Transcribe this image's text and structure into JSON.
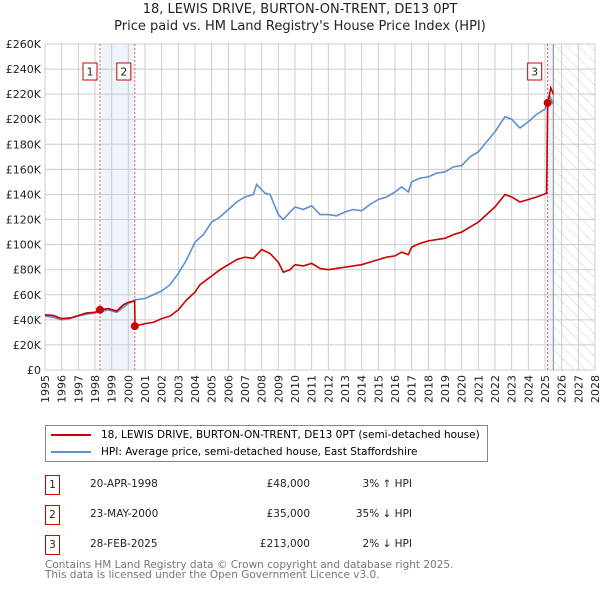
{
  "chart_data": {
    "type": "line",
    "title": "18, LEWIS DRIVE, BURTON-ON-TRENT, DE13 0PT",
    "subtitle": "Price paid vs. HM Land Registry's House Price Index (HPI)",
    "xlim": [
      1995,
      2028
    ],
    "ylim": [
      0,
      260000
    ],
    "x_ticks": [
      "1995",
      "1996",
      "1997",
      "1998",
      "1999",
      "2000",
      "2001",
      "2002",
      "2003",
      "2004",
      "2005",
      "2006",
      "2007",
      "2008",
      "2009",
      "2010",
      "2011",
      "2012",
      "2013",
      "2014",
      "2015",
      "2016",
      "2017",
      "2018",
      "2019",
      "2020",
      "2021",
      "2022",
      "2023",
      "2024",
      "2025",
      "2026",
      "2027",
      "2028"
    ],
    "y_ticks": [
      {
        "v": 0,
        "l": "£0"
      },
      {
        "v": 20000,
        "l": "£20K"
      },
      {
        "v": 40000,
        "l": "£40K"
      },
      {
        "v": 60000,
        "l": "£60K"
      },
      {
        "v": 80000,
        "l": "£80K"
      },
      {
        "v": 100000,
        "l": "£100K"
      },
      {
        "v": 120000,
        "l": "£120K"
      },
      {
        "v": 140000,
        "l": "£140K"
      },
      {
        "v": 160000,
        "l": "£160K"
      },
      {
        "v": 180000,
        "l": "£180K"
      },
      {
        "v": 200000,
        "l": "£200K"
      },
      {
        "v": 220000,
        "l": "£220K"
      },
      {
        "v": 240000,
        "l": "£240K"
      },
      {
        "v": 260000,
        "l": "£260K"
      }
    ],
    "grid": true,
    "shaded_band": [
      1998.3,
      2000.39
    ],
    "forecast_start": 2025.5,
    "series": [
      {
        "name": "18, LEWIS DRIVE, BURTON-ON-TRENT, DE13 0PT (semi-detached house)",
        "color": "#cc0000",
        "points": [
          [
            1995,
            44000
          ],
          [
            1995.5,
            43500
          ],
          [
            1996,
            41000
          ],
          [
            1996.5,
            41500
          ],
          [
            1997,
            43500
          ],
          [
            1997.5,
            45500
          ],
          [
            1998,
            46000
          ],
          [
            1998.3,
            48000
          ],
          [
            1998.8,
            49000
          ],
          [
            1999.3,
            47000
          ],
          [
            1999.7,
            52000
          ],
          [
            2000,
            54000
          ],
          [
            2000.38,
            55000
          ],
          [
            2000.4,
            35000
          ],
          [
            2001,
            37000
          ],
          [
            2001.5,
            38000
          ],
          [
            2002,
            41000
          ],
          [
            2002.5,
            43000
          ],
          [
            2003,
            48000
          ],
          [
            2003.5,
            56000
          ],
          [
            2004,
            62000
          ],
          [
            2004.3,
            68000
          ],
          [
            2005,
            75000
          ],
          [
            2005.5,
            80000
          ],
          [
            2006,
            84000
          ],
          [
            2006.5,
            88000
          ],
          [
            2007,
            90000
          ],
          [
            2007.5,
            89000
          ],
          [
            2008,
            96000
          ],
          [
            2008.5,
            93000
          ],
          [
            2009,
            86000
          ],
          [
            2009.3,
            78000
          ],
          [
            2009.7,
            80000
          ],
          [
            2010,
            84000
          ],
          [
            2010.5,
            83000
          ],
          [
            2011,
            85000
          ],
          [
            2011.5,
            81000
          ],
          [
            2012,
            80000
          ],
          [
            2012.5,
            81000
          ],
          [
            2013,
            82000
          ],
          [
            2013.5,
            83000
          ],
          [
            2014,
            84000
          ],
          [
            2014.5,
            86000
          ],
          [
            2015,
            88000
          ],
          [
            2015.5,
            90000
          ],
          [
            2016,
            91000
          ],
          [
            2016.4,
            94000
          ],
          [
            2016.8,
            92000
          ],
          [
            2017,
            98000
          ],
          [
            2017.5,
            101000
          ],
          [
            2018,
            103000
          ],
          [
            2018.5,
            104000
          ],
          [
            2019,
            105000
          ],
          [
            2019.5,
            108000
          ],
          [
            2020,
            110000
          ],
          [
            2020.5,
            114000
          ],
          [
            2021,
            118000
          ],
          [
            2021.5,
            124000
          ],
          [
            2022,
            130000
          ],
          [
            2022.6,
            140000
          ],
          [
            2023,
            138000
          ],
          [
            2023.5,
            134000
          ],
          [
            2024,
            136000
          ],
          [
            2024.5,
            138000
          ],
          [
            2025.1,
            141000
          ],
          [
            2025.16,
            213000
          ],
          [
            2025.35,
            225000
          ],
          [
            2025.5,
            220000
          ]
        ]
      },
      {
        "name": "HPI: Average price, semi-detached house, East Staffordshire",
        "color": "#5b8fd4",
        "points": [
          [
            1995,
            43000
          ],
          [
            1995.5,
            42000
          ],
          [
            1996,
            40000
          ],
          [
            1996.5,
            41000
          ],
          [
            1997,
            43000
          ],
          [
            1997.5,
            44500
          ],
          [
            1998,
            45500
          ],
          [
            1998.3,
            46500
          ],
          [
            1998.8,
            48000
          ],
          [
            1999.3,
            46000
          ],
          [
            1999.7,
            50000
          ],
          [
            2000,
            53000
          ],
          [
            2000.4,
            56000
          ],
          [
            2001,
            57000
          ],
          [
            2001.5,
            60000
          ],
          [
            2002,
            63000
          ],
          [
            2002.5,
            68000
          ],
          [
            2003,
            77000
          ],
          [
            2003.5,
            88000
          ],
          [
            2004,
            102000
          ],
          [
            2004.5,
            108000
          ],
          [
            2005,
            118000
          ],
          [
            2005.5,
            122000
          ],
          [
            2006,
            128000
          ],
          [
            2006.5,
            134000
          ],
          [
            2007,
            138000
          ],
          [
            2007.5,
            140000
          ],
          [
            2007.7,
            148000
          ],
          [
            2008.2,
            141000
          ],
          [
            2008.5,
            140000
          ],
          [
            2009,
            124000
          ],
          [
            2009.3,
            120000
          ],
          [
            2009.7,
            126000
          ],
          [
            2010,
            130000
          ],
          [
            2010.5,
            128000
          ],
          [
            2011,
            131000
          ],
          [
            2011.5,
            124000
          ],
          [
            2012,
            124000
          ],
          [
            2012.5,
            123000
          ],
          [
            2013,
            126000
          ],
          [
            2013.5,
            128000
          ],
          [
            2014,
            127000
          ],
          [
            2014.5,
            132000
          ],
          [
            2015,
            136000
          ],
          [
            2015.5,
            138000
          ],
          [
            2016,
            142000
          ],
          [
            2016.4,
            146000
          ],
          [
            2016.8,
            142000
          ],
          [
            2017,
            150000
          ],
          [
            2017.5,
            153000
          ],
          [
            2018,
            154000
          ],
          [
            2018.5,
            157000
          ],
          [
            2019,
            158000
          ],
          [
            2019.5,
            162000
          ],
          [
            2020,
            163000
          ],
          [
            2020.5,
            170000
          ],
          [
            2021,
            174000
          ],
          [
            2021.5,
            182000
          ],
          [
            2022,
            190000
          ],
          [
            2022.6,
            202000
          ],
          [
            2023,
            200000
          ],
          [
            2023.5,
            193000
          ],
          [
            2024,
            198000
          ],
          [
            2024.5,
            204000
          ],
          [
            2025,
            208000
          ],
          [
            2025.3,
            218000
          ],
          [
            2025.5,
            212000
          ]
        ]
      }
    ],
    "sales": [
      {
        "n": "1",
        "x": 1998.3,
        "y": 48000
      },
      {
        "n": "2",
        "x": 2000.39,
        "y": 35000
      },
      {
        "n": "3",
        "x": 2025.16,
        "y": 213000
      }
    ]
  },
  "legend": {
    "property": "18, LEWIS DRIVE, BURTON-ON-TRENT, DE13 0PT (semi-detached house)",
    "hpi": "HPI: Average price, semi-detached house, East Staffordshire"
  },
  "transactions": [
    {
      "n": "1",
      "date": "20-APR-1998",
      "price": "£48,000",
      "hpi": "3% ↑ HPI"
    },
    {
      "n": "2",
      "date": "23-MAY-2000",
      "price": "£35,000",
      "hpi": "35% ↓ HPI"
    },
    {
      "n": "3",
      "date": "28-FEB-2025",
      "price": "£213,000",
      "hpi": "2% ↓ HPI"
    }
  ],
  "footer": {
    "line1": "Contains HM Land Registry data © Crown copyright and database right 2025.",
    "line2": "This data is licensed under the Open Government Licence v3.0."
  }
}
